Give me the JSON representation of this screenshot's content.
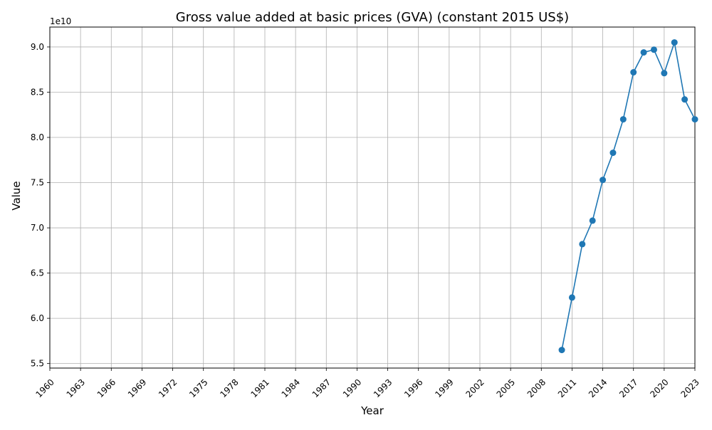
{
  "chart_data": {
    "type": "line",
    "title": "Gross value added at basic prices (GVA) (constant 2015 US$)",
    "xlabel": "Year",
    "ylabel": "Value",
    "y_offset_label": "1e10",
    "xlim": [
      1960,
      2023
    ],
    "ylim": [
      5.45,
      9.22
    ],
    "y_unit_scale": 10000000000,
    "grid": true,
    "series_color": "#1f77b4",
    "x_ticks": [
      "1960",
      "1963",
      "1966",
      "1969",
      "1972",
      "1975",
      "1978",
      "1981",
      "1984",
      "1987",
      "1990",
      "1993",
      "1996",
      "1999",
      "2002",
      "2005",
      "2008",
      "2011",
      "2014",
      "2017",
      "2020",
      "2023"
    ],
    "y_ticks": [
      "5.5",
      "6.0",
      "6.5",
      "7.0",
      "7.5",
      "8.0",
      "8.5",
      "9.0"
    ],
    "series": [
      {
        "x": [
          2010,
          2011,
          2012,
          2013,
          2014,
          2015,
          2016,
          2017,
          2018,
          2019,
          2020,
          2021,
          2022,
          2023
        ],
        "values": [
          5.65,
          6.23,
          6.82,
          7.08,
          7.53,
          7.83,
          8.2,
          8.72,
          8.94,
          8.97,
          8.71,
          9.05,
          8.42,
          8.2
        ]
      }
    ]
  }
}
